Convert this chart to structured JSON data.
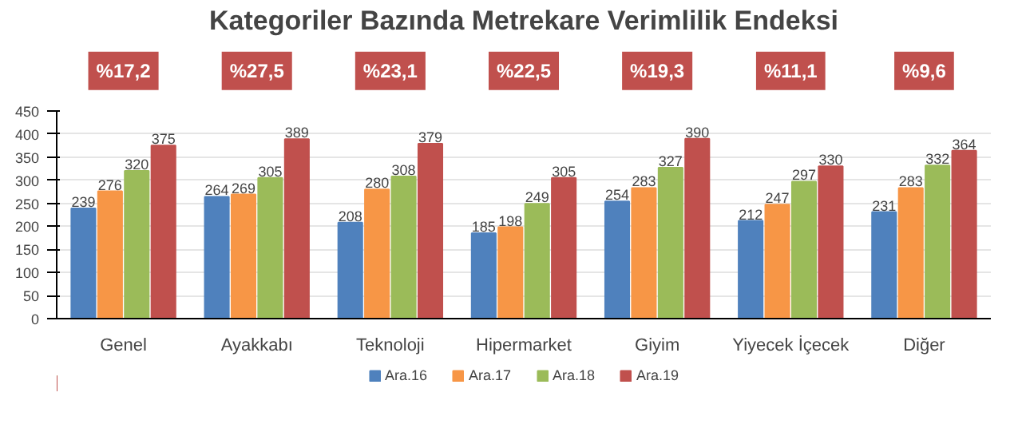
{
  "chart_data": {
    "type": "bar",
    "title": "Kategoriler Bazında Metrekare Verimlilik Endeksi",
    "categories": [
      "Genel",
      "Ayakkabı",
      "Teknoloji",
      "Hipermarket",
      "Giyim",
      "Yiyecek İçecek",
      "Diğer"
    ],
    "series": [
      {
        "name": "Ara.16",
        "color": "#4f81bd",
        "values": [
          239,
          264,
          208,
          185,
          254,
          212,
          231
        ]
      },
      {
        "name": "Ara.17",
        "color": "#f79646",
        "values": [
          276,
          269,
          280,
          198,
          283,
          247,
          283
        ]
      },
      {
        "name": "Ara.18",
        "color": "#9bbb59",
        "values": [
          320,
          305,
          308,
          249,
          327,
          297,
          332
        ]
      },
      {
        "name": "Ara.19",
        "color": "#c0504d",
        "values": [
          375,
          389,
          379,
          305,
          390,
          330,
          364
        ]
      }
    ],
    "annotations": [
      "%17,2",
      "%27,5",
      "%23,1",
      "%22,5",
      "%19,3",
      "%11,1",
      "%9,6"
    ],
    "ylim": [
      0,
      450
    ],
    "yticks": [
      0,
      50,
      100,
      150,
      200,
      250,
      300,
      350,
      400,
      450
    ],
    "grid": "y",
    "legend": "bottom",
    "data_labels": true
  }
}
